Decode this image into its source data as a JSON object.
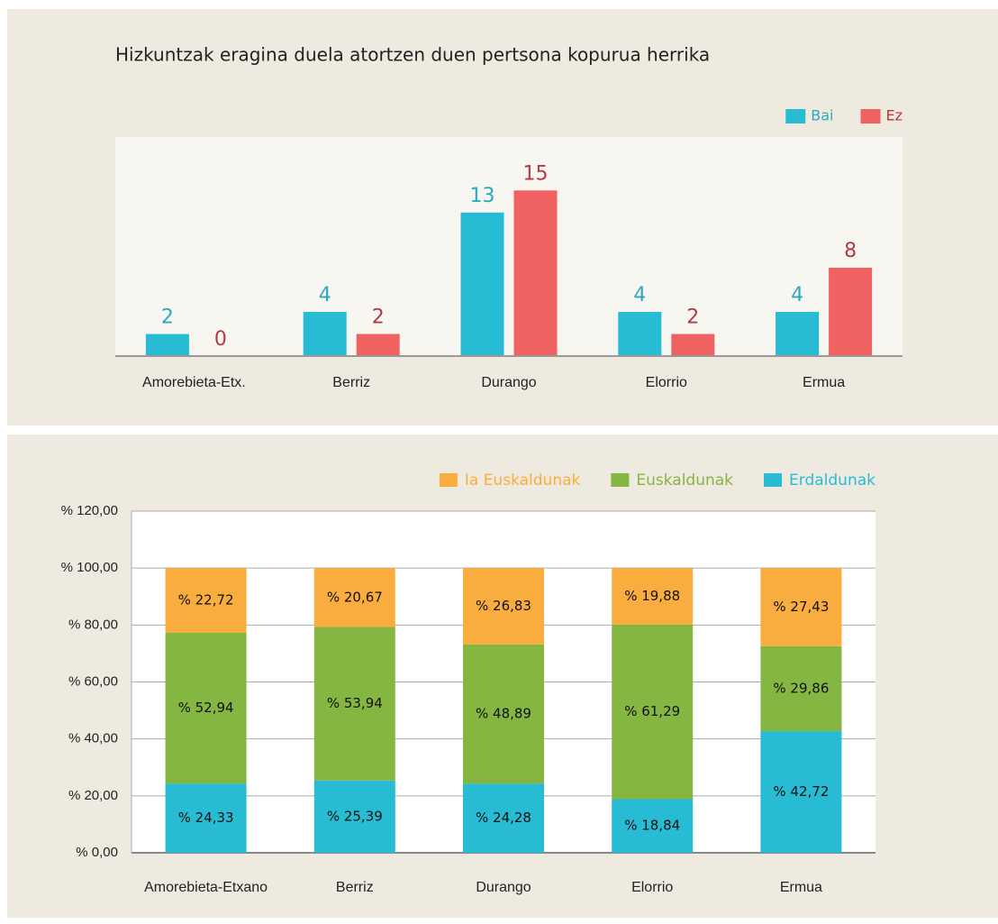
{
  "chart_data": [
    {
      "type": "bar",
      "title": "Hizkuntzak eragina duela atortzen duen pertsona kopurua herrika",
      "categories": [
        "Amorebieta-Etx.",
        "Berriz",
        "Durango",
        "Elorrio",
        "Ermua"
      ],
      "series": [
        {
          "name": "Bai",
          "color": "#28bcd4",
          "values": [
            2,
            4,
            13,
            4,
            4
          ]
        },
        {
          "name": "Ez",
          "color": "#f06262",
          "values": [
            0,
            2,
            15,
            2,
            8
          ]
        }
      ],
      "ylim": [
        0,
        20
      ],
      "legend": "top-right"
    },
    {
      "type": "stacked_bar",
      "categories": [
        "Amorebieta-Etxano",
        "Berriz",
        "Durango",
        "Elorrio",
        "Ermua"
      ],
      "series": [
        {
          "name": "Erdaldunak",
          "color": "#28bcd4",
          "values": [
            24.33,
            25.39,
            24.28,
            18.84,
            42.72
          ],
          "value_labels": [
            "% 24,33",
            "% 25,39",
            "% 24,28",
            "% 18,84",
            "% 42,72"
          ]
        },
        {
          "name": "Euskaldunak",
          "color": "#84b641",
          "values": [
            52.94,
            53.94,
            48.89,
            61.29,
            29.86
          ],
          "value_labels": [
            "% 52,94",
            "% 53,94",
            "% 48,89",
            "% 61,29",
            "% 29,86"
          ]
        },
        {
          "name": "Ia Euskaldunak",
          "color": "#f9ad3e",
          "values": [
            22.72,
            20.67,
            26.83,
            19.88,
            27.43
          ],
          "value_labels": [
            "% 22,72",
            "% 20,67",
            "% 26,83",
            "% 19,88",
            "% 27,43"
          ]
        }
      ],
      "ylim": [
        0,
        120
      ],
      "yticks": [
        {
          "value": 0,
          "label": "% 0,00"
        },
        {
          "value": 20,
          "label": "% 20,00"
        },
        {
          "value": 40,
          "label": "% 40,00"
        },
        {
          "value": 60,
          "label": "% 60,00"
        },
        {
          "value": 80,
          "label": "% 80,00"
        },
        {
          "value": 100,
          "label": "% 100,00"
        },
        {
          "value": 120,
          "label": "% 120,00"
        }
      ],
      "grid": true,
      "legend": "top-right"
    }
  ]
}
